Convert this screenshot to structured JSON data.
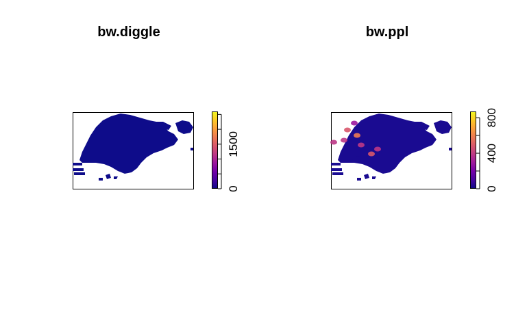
{
  "chart_data": [
    {
      "type": "heatmap",
      "title": "bw.diggle",
      "legend": {
        "ticks": [
          0,
          1500
        ],
        "range": [
          0,
          2600
        ],
        "position": "right"
      },
      "palette": [
        "#0d0887",
        "#46039f",
        "#7201a8",
        "#9c179e",
        "#bd3786",
        "#d8576b",
        "#ed7953",
        "#fb9f3a",
        "#fdca26",
        "#f0f921"
      ],
      "hotspots": []
    },
    {
      "type": "heatmap",
      "title": "bw.ppl",
      "legend": {
        "ticks": [
          0,
          400,
          800
        ],
        "range": [
          0,
          870
        ],
        "position": "right"
      },
      "palette": [
        "#0d0887",
        "#46039f",
        "#7201a8",
        "#9c179e",
        "#bd3786",
        "#d8576b",
        "#ed7953",
        "#fb9f3a",
        "#fdca26",
        "#f0f921"
      ],
      "hotspots": [
        {
          "value": 620
        },
        {
          "value": 520
        },
        {
          "value": 480
        },
        {
          "value": 430
        },
        {
          "value": 400
        },
        {
          "value": 380
        },
        {
          "value": 350
        },
        {
          "value": 330
        }
      ]
    }
  ]
}
